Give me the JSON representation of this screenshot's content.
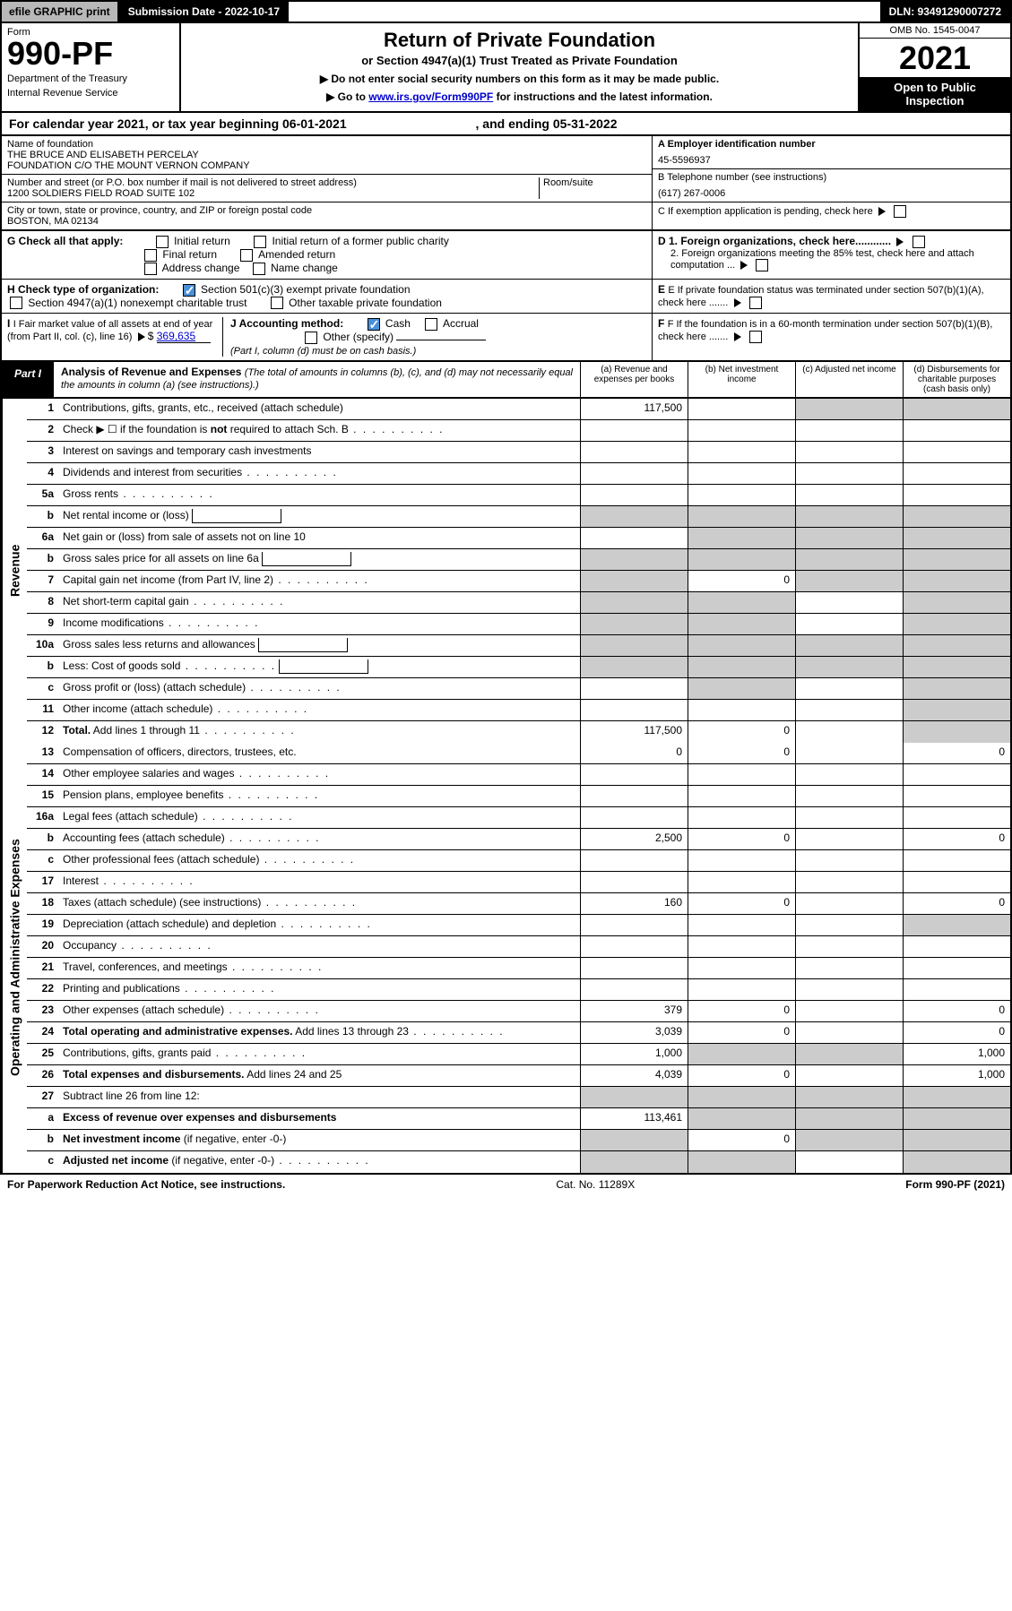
{
  "topbar": {
    "efile": "efile GRAPHIC print",
    "submission": "Submission Date - 2022-10-17",
    "dln": "DLN: 93491290007272"
  },
  "header": {
    "form_word": "Form",
    "form_num": "990-PF",
    "dept": "Department of the Treasury",
    "irs": "Internal Revenue Service",
    "title": "Return of Private Foundation",
    "subtitle": "or Section 4947(a)(1) Trust Treated as Private Foundation",
    "instr1": "▶ Do not enter social security numbers on this form as it may be made public.",
    "instr2_pre": "▶ Go to ",
    "instr2_link": "www.irs.gov/Form990PF",
    "instr2_post": " for instructions and the latest information.",
    "omb": "OMB No. 1545-0047",
    "year": "2021",
    "open": "Open to Public Inspection"
  },
  "calyear": {
    "text_pre": "For calendar year 2021, or tax year beginning ",
    "begin": "06-01-2021",
    "text_mid": ", and ending ",
    "end": "05-31-2022"
  },
  "info": {
    "name_label": "Name of foundation",
    "name1": "THE BRUCE AND ELISABETH PERCELAY",
    "name2": "FOUNDATION C/O THE MOUNT VERNON COMPANY",
    "addr_label": "Number and street (or P.O. box number if mail is not delivered to street address)",
    "room_label": "Room/suite",
    "addr": "1200 SOLDIERS FIELD ROAD SUITE 102",
    "city_label": "City or town, state or province, country, and ZIP or foreign postal code",
    "city": "BOSTON, MA  02134",
    "a_label": "A Employer identification number",
    "a_val": "45-5596937",
    "b_label": "B Telephone number (see instructions)",
    "b_val": "(617) 267-0006",
    "c_label": "C If exemption application is pending, check here",
    "g_label": "G Check all that apply:",
    "g_opts": [
      "Initial return",
      "Initial return of a former public charity",
      "Final return",
      "Amended return",
      "Address change",
      "Name change"
    ],
    "d1": "D 1. Foreign organizations, check here............",
    "d2": "2. Foreign organizations meeting the 85% test, check here and attach computation ...",
    "h_label": "H Check type of organization:",
    "h1": "Section 501(c)(3) exempt private foundation",
    "h2": "Section 4947(a)(1) nonexempt charitable trust",
    "h3": "Other taxable private foundation",
    "e_label": "E  If private foundation status was terminated under section 507(b)(1)(A), check here .......",
    "i_label": "I Fair market value of all assets at end of year (from Part II, col. (c), line 16)",
    "i_val": "369,635",
    "j_label": "J Accounting method:",
    "j_cash": "Cash",
    "j_accrual": "Accrual",
    "j_other": "Other (specify)",
    "j_note": "(Part I, column (d) must be on cash basis.)",
    "f_label": "F  If the foundation is in a 60-month termination under section 507(b)(1)(B), check here ......."
  },
  "part1": {
    "label": "Part I",
    "title": "Analysis of Revenue and Expenses",
    "note": "(The total of amounts in columns (b), (c), and (d) may not necessarily equal the amounts in column (a) (see instructions).)",
    "col_a": "(a)  Revenue and expenses per books",
    "col_b": "(b)  Net investment income",
    "col_c": "(c)  Adjusted net income",
    "col_d": "(d)  Disbursements for charitable purposes (cash basis only)"
  },
  "side_labels": {
    "revenue": "Revenue",
    "expenses": "Operating and Administrative Expenses"
  },
  "rows": [
    {
      "n": "1",
      "d": "Contributions, gifts, grants, etc., received (attach schedule)",
      "a": "117,500",
      "shade_b": false,
      "shade_c": true,
      "shade_d": true
    },
    {
      "n": "2",
      "d": "Check ▶ ☐ if the foundation is <b>not</b> required to attach Sch. B",
      "dots": true,
      "shade_all": true,
      "no_cols": true
    },
    {
      "n": "3",
      "d": "Interest on savings and temporary cash investments"
    },
    {
      "n": "4",
      "d": "Dividends and interest from securities",
      "dots": true
    },
    {
      "n": "5a",
      "d": "Gross rents",
      "dots": true
    },
    {
      "n": "b",
      "d": "Net rental income or (loss)",
      "inline_box": true,
      "shade_a": true,
      "shade_b": true,
      "shade_c": true,
      "shade_d": true
    },
    {
      "n": "6a",
      "d": "Net gain or (loss) from sale of assets not on line 10",
      "shade_b": true,
      "shade_c": true,
      "shade_d": true
    },
    {
      "n": "b",
      "d": "Gross sales price for all assets on line 6a",
      "inline_box": true,
      "shade_a": true,
      "shade_b": true,
      "shade_c": true,
      "shade_d": true
    },
    {
      "n": "7",
      "d": "Capital gain net income (from Part IV, line 2)",
      "dots": true,
      "shade_a": true,
      "b": "0",
      "shade_c": true,
      "shade_d": true
    },
    {
      "n": "8",
      "d": "Net short-term capital gain",
      "dots": true,
      "shade_a": true,
      "shade_b": true,
      "shade_d": true
    },
    {
      "n": "9",
      "d": "Income modifications",
      "dots": true,
      "shade_a": true,
      "shade_b": true,
      "shade_d": true
    },
    {
      "n": "10a",
      "d": "Gross sales less returns and allowances",
      "inline_box": true,
      "shade_a": true,
      "shade_b": true,
      "shade_c": true,
      "shade_d": true
    },
    {
      "n": "b",
      "d": "Less: Cost of goods sold",
      "dots": true,
      "inline_box": true,
      "shade_a": true,
      "shade_b": true,
      "shade_c": true,
      "shade_d": true
    },
    {
      "n": "c",
      "d": "Gross profit or (loss) (attach schedule)",
      "dots": true,
      "shade_b": true,
      "shade_d": true
    },
    {
      "n": "11",
      "d": "Other income (attach schedule)",
      "dots": true,
      "shade_d": true
    },
    {
      "n": "12",
      "d": "<b>Total.</b> Add lines 1 through 11",
      "dots": true,
      "a": "117,500",
      "b": "0",
      "shade_d": true
    }
  ],
  "exp_rows": [
    {
      "n": "13",
      "d": "Compensation of officers, directors, trustees, etc.",
      "a": "0",
      "b": "0",
      "dd": "0"
    },
    {
      "n": "14",
      "d": "Other employee salaries and wages",
      "dots": true
    },
    {
      "n": "15",
      "d": "Pension plans, employee benefits",
      "dots": true
    },
    {
      "n": "16a",
      "d": "Legal fees (attach schedule)",
      "dots": true
    },
    {
      "n": "b",
      "d": "Accounting fees (attach schedule)",
      "dots": true,
      "a": "2,500",
      "b": "0",
      "dd": "0"
    },
    {
      "n": "c",
      "d": "Other professional fees (attach schedule)",
      "dots": true
    },
    {
      "n": "17",
      "d": "Interest",
      "dots": true
    },
    {
      "n": "18",
      "d": "Taxes (attach schedule) (see instructions)",
      "dots": true,
      "a": "160",
      "b": "0",
      "dd": "0"
    },
    {
      "n": "19",
      "d": "Depreciation (attach schedule) and depletion",
      "dots": true,
      "shade_d": true
    },
    {
      "n": "20",
      "d": "Occupancy",
      "dots": true
    },
    {
      "n": "21",
      "d": "Travel, conferences, and meetings",
      "dots": true
    },
    {
      "n": "22",
      "d": "Printing and publications",
      "dots": true
    },
    {
      "n": "23",
      "d": "Other expenses (attach schedule)",
      "dots": true,
      "a": "379",
      "b": "0",
      "dd": "0"
    },
    {
      "n": "24",
      "d": "<b>Total operating and administrative expenses.</b> Add lines 13 through 23",
      "dots": true,
      "a": "3,039",
      "b": "0",
      "dd": "0"
    },
    {
      "n": "25",
      "d": "Contributions, gifts, grants paid",
      "dots": true,
      "a": "1,000",
      "shade_b": true,
      "shade_c": true,
      "dd": "1,000"
    },
    {
      "n": "26",
      "d": "<b>Total expenses and disbursements.</b> Add lines 24 and 25",
      "a": "4,039",
      "b": "0",
      "dd": "1,000"
    },
    {
      "n": "27",
      "d": "Subtract line 26 from line 12:",
      "shade_a": true,
      "shade_b": true,
      "shade_c": true,
      "shade_d": true
    },
    {
      "n": "a",
      "d": "<b>Excess of revenue over expenses and disbursements</b>",
      "a": "113,461",
      "shade_b": true,
      "shade_c": true,
      "shade_d": true
    },
    {
      "n": "b",
      "d": "<b>Net investment income</b> (if negative, enter -0-)",
      "shade_a": true,
      "b": "0",
      "shade_c": true,
      "shade_d": true
    },
    {
      "n": "c",
      "d": "<b>Adjusted net income</b> (if negative, enter -0-)",
      "dots": true,
      "shade_a": true,
      "shade_b": true,
      "shade_d": true
    }
  ],
  "footer": {
    "left": "For Paperwork Reduction Act Notice, see instructions.",
    "mid": "Cat. No. 11289X",
    "right": "Form 990-PF (2021)"
  }
}
